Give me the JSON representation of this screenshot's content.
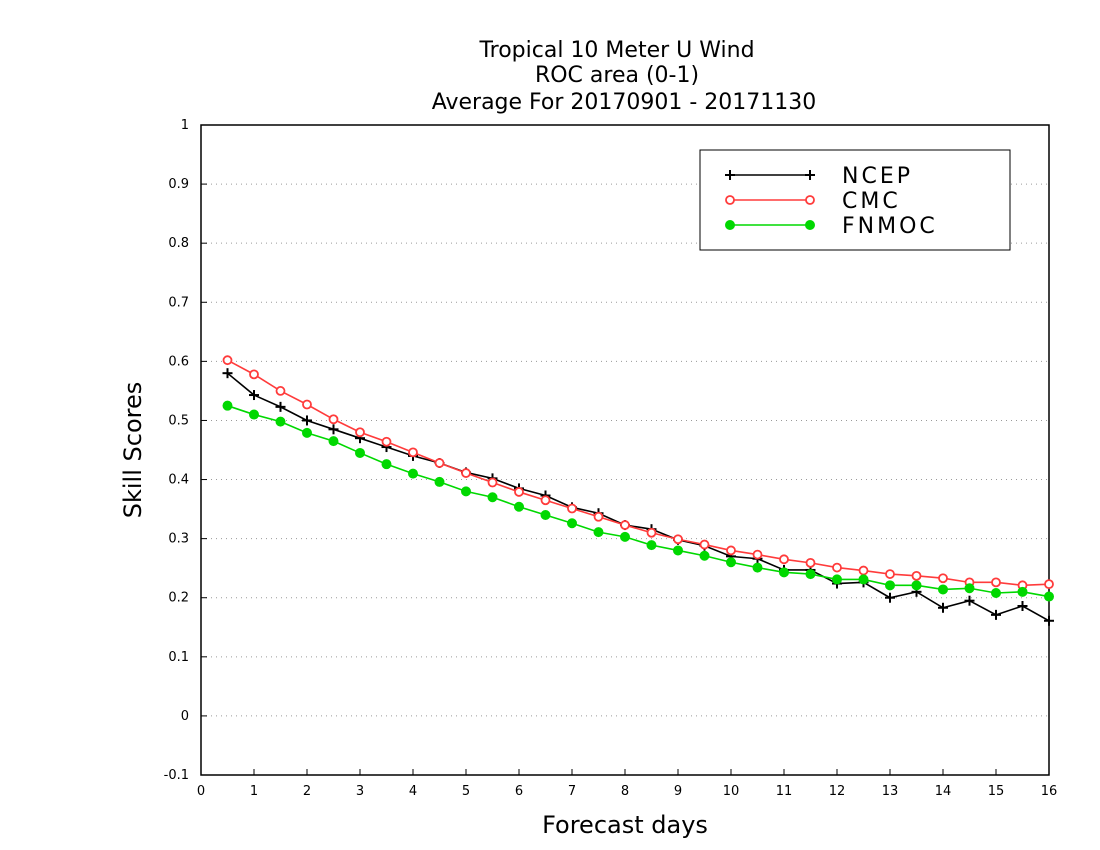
{
  "chart_data": {
    "type": "line",
    "title": [
      "Tropical 10 Meter U Wind",
      "ROC area (0-1)",
      "Average For 20170901 - 20171130"
    ],
    "xlabel": "Forecast days",
    "ylabel": "Skill Scores",
    "xlim": [
      0,
      16
    ],
    "ylim": [
      -0.1,
      1
    ],
    "xticks": [
      0,
      1,
      2,
      3,
      4,
      5,
      6,
      7,
      8,
      9,
      10,
      11,
      12,
      13,
      14,
      15,
      16
    ],
    "xtick_labels": [
      "0",
      "1",
      "2",
      "3",
      "4",
      "5",
      "6",
      "7",
      "8",
      "9",
      "10",
      "11",
      "12",
      "13",
      "14",
      "15",
      "16"
    ],
    "yticks": [
      -0.1,
      0,
      0.1,
      0.2,
      0.3,
      0.4,
      0.5,
      0.6,
      0.7,
      0.8,
      0.9,
      1
    ],
    "ytick_labels": [
      "-0.1",
      "0",
      "0.1",
      "0.2",
      "0.3",
      "0.4",
      "0.5",
      "0.6",
      "0.7",
      "0.8",
      "0.9",
      "1"
    ],
    "grid": "horizontal dotted",
    "legend_position": "top-right",
    "x": [
      0.5,
      1,
      1.5,
      2,
      2.5,
      3,
      3.5,
      4,
      4.5,
      5,
      5.5,
      6,
      6.5,
      7,
      7.5,
      8,
      8.5,
      9,
      9.5,
      10,
      10.5,
      11,
      11.5,
      12,
      12.5,
      13,
      13.5,
      14,
      14.5,
      15,
      15.5,
      16
    ],
    "series": [
      {
        "name": "NCEP",
        "color": "#000000",
        "marker": "plus",
        "values": [
          0.58,
          0.543,
          0.523,
          0.5,
          0.485,
          0.47,
          0.455,
          0.44,
          0.428,
          0.412,
          0.402,
          0.385,
          0.373,
          0.353,
          0.343,
          0.323,
          0.316,
          0.298,
          0.288,
          0.27,
          0.266,
          0.247,
          0.247,
          0.224,
          0.226,
          0.2,
          0.21,
          0.183,
          0.195,
          0.171,
          0.186,
          0.161
        ]
      },
      {
        "name": "CMC",
        "color": "#ff3b3b",
        "marker": "open-circle",
        "values": [
          0.602,
          0.578,
          0.55,
          0.527,
          0.502,
          0.48,
          0.464,
          0.446,
          0.428,
          0.411,
          0.395,
          0.379,
          0.365,
          0.351,
          0.337,
          0.323,
          0.31,
          0.299,
          0.29,
          0.28,
          0.273,
          0.265,
          0.259,
          0.251,
          0.246,
          0.24,
          0.237,
          0.233,
          0.226,
          0.226,
          0.221,
          0.223
        ]
      },
      {
        "name": "FNMOC",
        "color": "#00d800",
        "marker": "filled-circle",
        "values": [
          0.525,
          0.51,
          0.498,
          0.479,
          0.465,
          0.445,
          0.426,
          0.41,
          0.396,
          0.38,
          0.37,
          0.354,
          0.34,
          0.326,
          0.311,
          0.303,
          0.289,
          0.28,
          0.271,
          0.26,
          0.251,
          0.243,
          0.24,
          0.231,
          0.231,
          0.221,
          0.221,
          0.214,
          0.216,
          0.208,
          0.21,
          0.202
        ]
      }
    ]
  }
}
